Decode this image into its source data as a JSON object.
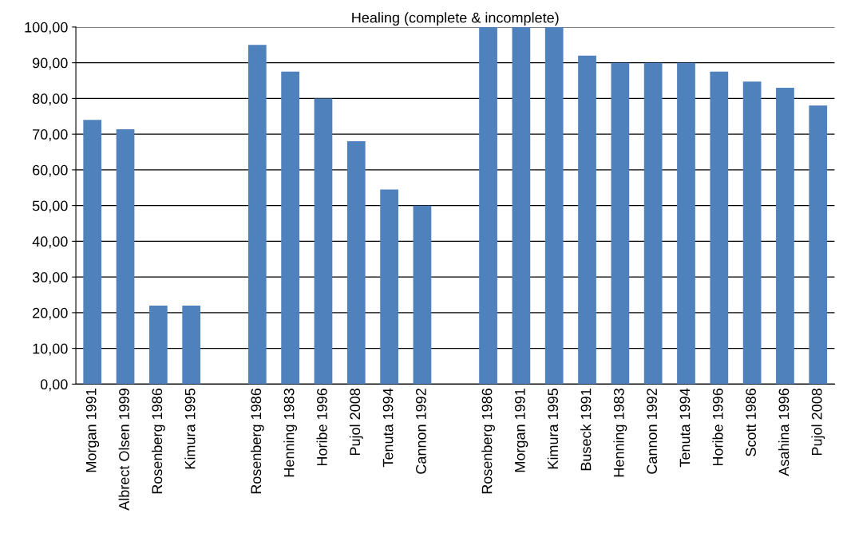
{
  "chart_data": {
    "type": "bar",
    "title": "Healing (complete & incomplete)",
    "categories": [
      "Morgan 1991",
      "Albrect Olsen 1999",
      "Rosenberg 1986",
      "Kimura 1995",
      null,
      "Rosenberg 1986",
      "Henning 1983",
      "Horibe 1996",
      "Pujol 2008",
      "Tenuta 1994",
      "Cannon 1992",
      null,
      "Rosenberg 1986",
      "Morgan 1991",
      "Kimura 1995",
      "Buseck 1991",
      "Henning 1983",
      "Cannon 1992",
      "Tenuta 1994",
      "Horibe 1996",
      "Scott 1986",
      "Asahina 1996",
      "Pujol 2008"
    ],
    "values": [
      74,
      71.4,
      22,
      22,
      null,
      95,
      87.5,
      80,
      68,
      54.5,
      50,
      null,
      100,
      100,
      100,
      92,
      90,
      90,
      90,
      87.5,
      84.7,
      83,
      78
    ],
    "color": "#4f81bd",
    "ylim": [
      0,
      100
    ],
    "yticks": [
      {
        "value": 0,
        "label": "0,00"
      },
      {
        "value": 10,
        "label": "10,00"
      },
      {
        "value": 20,
        "label": "20,00"
      },
      {
        "value": 30,
        "label": "30,00"
      },
      {
        "value": 40,
        "label": "40,00"
      },
      {
        "value": 50,
        "label": "50,00"
      },
      {
        "value": 60,
        "label": "60,00"
      },
      {
        "value": 70,
        "label": "70,00"
      },
      {
        "value": 80,
        "label": "80,00"
      },
      {
        "value": 90,
        "label": "90,00"
      },
      {
        "value": 100,
        "label": "100,00"
      }
    ],
    "grid": "y"
  }
}
